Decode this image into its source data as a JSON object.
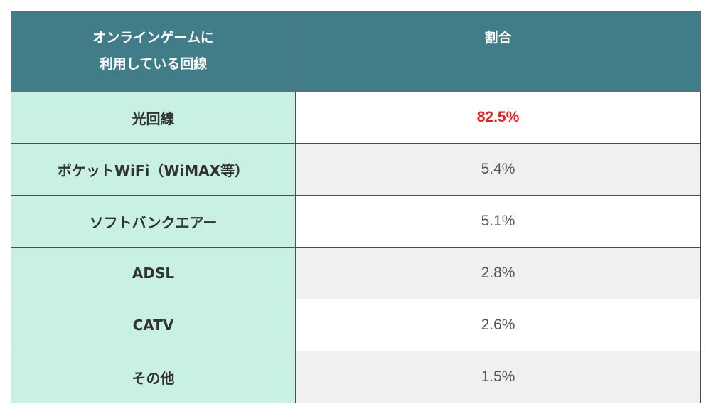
{
  "table": {
    "header": {
      "line1": "オンラインゲームに",
      "line2": "利用している回線",
      "ratio": "割合"
    },
    "rows": [
      {
        "label": "光回線",
        "value": "82.5%"
      },
      {
        "label": "ポケットWiFi（WiMAX等）",
        "value": "5.4%"
      },
      {
        "label": "ソフトバンクエアー",
        "value": "5.1%"
      },
      {
        "label": "ADSL",
        "value": "2.8%"
      },
      {
        "label": "CATV",
        "value": "2.6%"
      },
      {
        "label": "その他",
        "value": "1.5%"
      }
    ]
  },
  "colors": {
    "header_bg": "#417d88",
    "label_bg": "#c8f0e3",
    "highlight_text": "#ee1c1c"
  }
}
